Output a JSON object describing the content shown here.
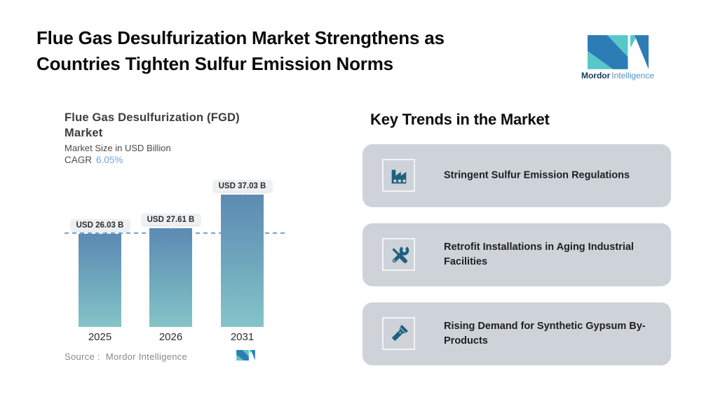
{
  "header": {
    "title_line1": "Flue Gas Desulfurization Market Strengthens as",
    "title_line2": "Countries Tighten Sulfur Emission Norms"
  },
  "brand": {
    "name_bold": "Mordor",
    "name_light": "Intelligence"
  },
  "chart": {
    "title_line1": "Flue Gas Desulfurization (FGD)",
    "title_line2": "Market",
    "subtitle": "Market Size in USD Billion",
    "cagr_label": "CAGR",
    "cagr_value": "6.05%",
    "source_label": "Source :",
    "source_value": "Mordor Intelligence"
  },
  "chart_data": {
    "type": "bar",
    "title": "Flue Gas Desulfurization (FGD) Market",
    "ylabel": "Market Size in USD Billion",
    "cagr_percent": 6.05,
    "categories": [
      "2025",
      "2026",
      "2031"
    ],
    "values": [
      26.03,
      27.61,
      37.03
    ],
    "value_labels": [
      "USD 26.03 B",
      "USD 27.61 B",
      "USD 37.03 B"
    ],
    "reference_line": 26.03,
    "ylim": [
      0,
      40
    ],
    "grid": false,
    "legend": false
  },
  "trends": {
    "heading": "Key Trends in the Market",
    "items": [
      {
        "icon": "factory-icon",
        "text": "Stringent Sulfur Emission Regulations"
      },
      {
        "icon": "tools-icon",
        "text": "Retrofit Installations in Aging Industrial Facilities"
      },
      {
        "icon": "flashlight-icon",
        "text": "Rising Demand for Synthetic Gypsum By-Products"
      }
    ]
  },
  "colors": {
    "bar_top": "#5c8ab3",
    "bar_bottom": "#84c4c8",
    "reference_line": "#74a3d2",
    "pill_bg": "#edf0f2",
    "card_bg": "#ced3da",
    "icon_blue": "#20607f",
    "brand_teal": "#57c7c7",
    "brand_blue": "#2e7cb5",
    "cagr_value_color": "#75a5d8"
  }
}
